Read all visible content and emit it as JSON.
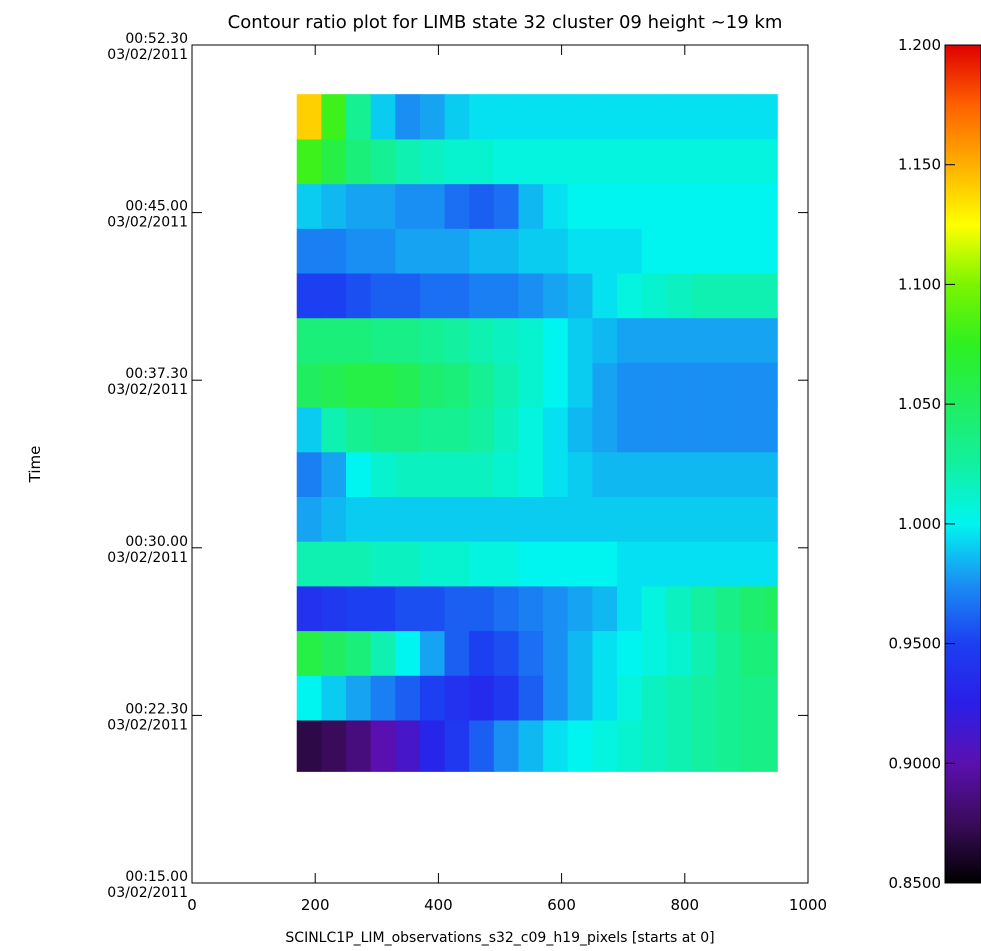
{
  "chart_data": {
    "type": "heatmap",
    "title": "Contour ratio plot for LIMB state 32 cluster 09 height ~19 km",
    "xlabel": "SCINLC1P_LIM_observations_s32_c09_h19_pixels [starts at 0]",
    "ylabel": "Time",
    "xlim": [
      0,
      1000
    ],
    "ylim": [
      0,
      37.5
    ],
    "x_ticks": [
      {
        "value": 0,
        "label": "0"
      },
      {
        "value": 200,
        "label": "200"
      },
      {
        "value": 400,
        "label": "400"
      },
      {
        "value": 600,
        "label": "600"
      },
      {
        "value": 800,
        "label": "800"
      },
      {
        "value": 1000,
        "label": "1000"
      }
    ],
    "y_ticks": [
      {
        "value": 0,
        "time": "00:15.00",
        "date": "03/02/2011"
      },
      {
        "value": 7.5,
        "time": "00:22.30",
        "date": "03/02/2011"
      },
      {
        "value": 15,
        "time": "00:30.00",
        "date": "03/02/2011"
      },
      {
        "value": 22.5,
        "time": "00:37.30",
        "date": "03/02/2011"
      },
      {
        "value": 30,
        "time": "00:45.00",
        "date": "03/02/2011"
      },
      {
        "value": 37.5,
        "time": "00:52.30",
        "date": "03/02/2011"
      }
    ],
    "x_extent": [
      170,
      950
    ],
    "columns": [
      170,
      210,
      250,
      290,
      330,
      370,
      410,
      450,
      490,
      530,
      570,
      610,
      650,
      690,
      730,
      770,
      810,
      850,
      890,
      930
    ],
    "rows": [
      {
        "y0": 5.0,
        "y1": 7.3,
        "values": [
          0.87,
          0.875,
          0.885,
          0.9,
          0.91,
          0.93,
          0.945,
          0.96,
          0.975,
          0.985,
          0.995,
          1.0,
          1.005,
          1.01,
          1.015,
          1.02,
          1.025,
          1.03,
          1.035,
          1.035
        ]
      },
      {
        "y0": 7.3,
        "y1": 9.3,
        "values": [
          1.0,
          0.99,
          0.98,
          0.97,
          0.96,
          0.95,
          0.94,
          0.935,
          0.945,
          0.96,
          0.975,
          0.985,
          0.995,
          1.005,
          1.015,
          1.02,
          1.025,
          1.03,
          1.035,
          1.035
        ]
      },
      {
        "y0": 9.3,
        "y1": 11.3,
        "values": [
          1.06,
          1.05,
          1.04,
          1.02,
          1.0,
          0.98,
          0.96,
          0.95,
          0.955,
          0.965,
          0.975,
          0.985,
          0.995,
          1.0,
          1.005,
          1.01,
          1.02,
          1.03,
          1.04,
          1.04
        ]
      },
      {
        "y0": 11.3,
        "y1": 13.3,
        "values": [
          0.94,
          0.945,
          0.95,
          0.95,
          0.955,
          0.955,
          0.96,
          0.96,
          0.965,
          0.97,
          0.975,
          0.98,
          0.985,
          0.995,
          1.005,
          1.015,
          1.025,
          1.035,
          1.045,
          1.05
        ]
      },
      {
        "y0": 13.3,
        "y1": 15.3,
        "values": [
          1.02,
          1.02,
          1.02,
          1.015,
          1.015,
          1.01,
          1.01,
          1.005,
          1.005,
          1.0,
          1.0,
          1.0,
          1.0,
          0.995,
          0.995,
          0.995,
          0.995,
          0.995,
          0.995,
          0.995
        ]
      },
      {
        "y0": 15.3,
        "y1": 17.3,
        "values": [
          0.98,
          0.985,
          0.99,
          0.99,
          0.99,
          0.99,
          0.99,
          0.99,
          0.99,
          0.99,
          0.99,
          0.99,
          0.99,
          0.99,
          0.99,
          0.99,
          0.99,
          0.99,
          0.99,
          0.99
        ]
      },
      {
        "y0": 17.3,
        "y1": 19.3,
        "values": [
          0.97,
          0.98,
          1.0,
          1.01,
          1.015,
          1.015,
          1.015,
          1.015,
          1.01,
          1.005,
          0.995,
          0.99,
          0.985,
          0.985,
          0.985,
          0.985,
          0.985,
          0.985,
          0.985,
          0.985
        ]
      },
      {
        "y0": 19.3,
        "y1": 21.3,
        "values": [
          0.99,
          1.02,
          1.03,
          1.035,
          1.035,
          1.03,
          1.03,
          1.025,
          1.015,
          1.005,
          0.995,
          0.985,
          0.98,
          0.975,
          0.975,
          0.975,
          0.975,
          0.975,
          0.975,
          0.975
        ]
      },
      {
        "y0": 21.3,
        "y1": 23.3,
        "values": [
          1.05,
          1.055,
          1.06,
          1.06,
          1.055,
          1.045,
          1.04,
          1.03,
          1.02,
          1.01,
          1.0,
          0.99,
          0.98,
          0.975,
          0.975,
          0.975,
          0.975,
          0.975,
          0.975,
          0.975
        ]
      },
      {
        "y0": 23.3,
        "y1": 25.3,
        "values": [
          1.04,
          1.04,
          1.04,
          1.035,
          1.035,
          1.03,
          1.025,
          1.02,
          1.015,
          1.01,
          1.0,
          0.99,
          0.985,
          0.98,
          0.98,
          0.98,
          0.98,
          0.98,
          0.98,
          0.98
        ]
      },
      {
        "y0": 25.3,
        "y1": 27.3,
        "values": [
          0.95,
          0.95,
          0.955,
          0.96,
          0.96,
          0.965,
          0.965,
          0.97,
          0.97,
          0.975,
          0.98,
          0.985,
          0.995,
          1.005,
          1.01,
          1.015,
          1.02,
          1.02,
          1.02,
          1.02
        ]
      },
      {
        "y0": 27.3,
        "y1": 29.3,
        "values": [
          0.97,
          0.97,
          0.975,
          0.975,
          0.98,
          0.98,
          0.98,
          0.985,
          0.985,
          0.99,
          0.99,
          0.995,
          0.995,
          0.995,
          1.0,
          1.0,
          1.0,
          1.0,
          1.0,
          1.0
        ]
      },
      {
        "y0": 29.3,
        "y1": 31.3,
        "values": [
          0.99,
          0.985,
          0.98,
          0.98,
          0.975,
          0.975,
          0.965,
          0.96,
          0.965,
          0.985,
          0.995,
          1.0,
          1.0,
          1.0,
          1.0,
          1.0,
          1.0,
          1.0,
          1.0,
          1.0
        ]
      },
      {
        "y0": 31.3,
        "y1": 33.3,
        "values": [
          1.08,
          1.06,
          1.04,
          1.03,
          1.02,
          1.015,
          1.01,
          1.01,
          1.005,
          1.005,
          1.005,
          1.005,
          1.005,
          1.005,
          1.005,
          1.005,
          1.005,
          1.005,
          1.005,
          1.005
        ]
      },
      {
        "y0": 33.3,
        "y1": 35.3,
        "values": [
          1.14,
          1.08,
          1.03,
          0.99,
          0.975,
          0.98,
          0.99,
          0.995,
          0.995,
          0.995,
          0.995,
          0.995,
          0.995,
          0.995,
          0.995,
          0.995,
          0.995,
          0.995,
          0.995,
          0.995
        ]
      }
    ],
    "colorbar": {
      "range": [
        0.85,
        1.2
      ],
      "ticks": [
        {
          "value": 0.85,
          "label": "0.8500"
        },
        {
          "value": 0.9,
          "label": "0.9000"
        },
        {
          "value": 0.95,
          "label": "0.9500"
        },
        {
          "value": 1.0,
          "label": "1.000"
        },
        {
          "value": 1.05,
          "label": "1.050"
        },
        {
          "value": 1.1,
          "label": "1.100"
        },
        {
          "value": 1.15,
          "label": "1.150"
        },
        {
          "value": 1.2,
          "label": "1.200"
        }
      ],
      "colormap": [
        {
          "v": 0.85,
          "color": "#000000"
        },
        {
          "v": 0.875,
          "color": "#3a0b5a"
        },
        {
          "v": 0.9,
          "color": "#5a10b0"
        },
        {
          "v": 0.925,
          "color": "#2a1ee8"
        },
        {
          "v": 0.95,
          "color": "#1c3ff2"
        },
        {
          "v": 0.975,
          "color": "#1a8ff3"
        },
        {
          "v": 1.0,
          "color": "#00f5f0"
        },
        {
          "v": 1.025,
          "color": "#12f0a0"
        },
        {
          "v": 1.05,
          "color": "#20ee60"
        },
        {
          "v": 1.075,
          "color": "#2ef020"
        },
        {
          "v": 1.1,
          "color": "#7af500"
        },
        {
          "v": 1.125,
          "color": "#ffff00"
        },
        {
          "v": 1.15,
          "color": "#ffb000"
        },
        {
          "v": 1.175,
          "color": "#ff6000"
        },
        {
          "v": 1.2,
          "color": "#e00000"
        }
      ]
    }
  }
}
